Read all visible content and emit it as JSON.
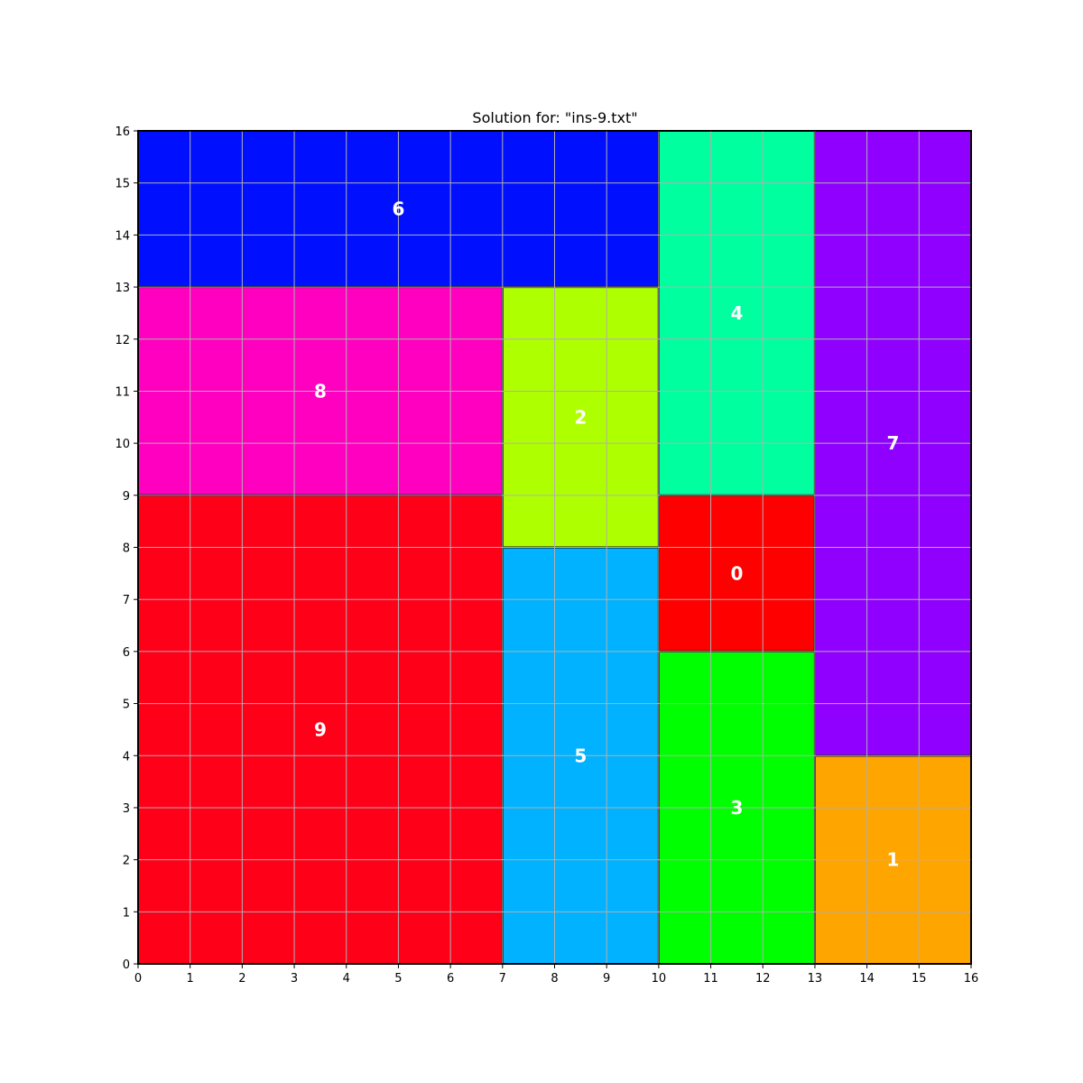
{
  "chart_data": {
    "type": "rectangle-packing",
    "title": "Solution for: \"ins-9.txt\"",
    "xlim": [
      0,
      16
    ],
    "ylim": [
      0,
      16
    ],
    "x_ticks": [
      "0",
      "1",
      "2",
      "3",
      "4",
      "5",
      "6",
      "7",
      "8",
      "9",
      "10",
      "11",
      "12",
      "13",
      "14",
      "15",
      "16"
    ],
    "y_ticks": [
      "0",
      "1",
      "2",
      "3",
      "4",
      "5",
      "6",
      "7",
      "8",
      "9",
      "10",
      "11",
      "12",
      "13",
      "14",
      "15",
      "16"
    ],
    "grid": true,
    "rectangles": [
      {
        "id": "0",
        "x": 10,
        "y": 6,
        "w": 3,
        "h": 3,
        "color": "#ff0000"
      },
      {
        "id": "1",
        "x": 13,
        "y": 0,
        "w": 3,
        "h": 4,
        "color": "#ffa500"
      },
      {
        "id": "2",
        "x": 7,
        "y": 8,
        "w": 3,
        "h": 5,
        "color": "#aeff00"
      },
      {
        "id": "3",
        "x": 10,
        "y": 0,
        "w": 3,
        "h": 6,
        "color": "#00ff00"
      },
      {
        "id": "4",
        "x": 10,
        "y": 9,
        "w": 3,
        "h": 7,
        "color": "#00ff9f"
      },
      {
        "id": "5",
        "x": 7,
        "y": 0,
        "w": 3,
        "h": 8,
        "color": "#00b2ff"
      },
      {
        "id": "6",
        "x": 0,
        "y": 13,
        "w": 10,
        "h": 3,
        "color": "#0010ff"
      },
      {
        "id": "7",
        "x": 13,
        "y": 4,
        "w": 3,
        "h": 12,
        "color": "#9000ff"
      },
      {
        "id": "8",
        "x": 0,
        "y": 9,
        "w": 7,
        "h": 4,
        "color": "#ff00c0"
      },
      {
        "id": "9",
        "x": 0,
        "y": 0,
        "w": 7,
        "h": 9,
        "color": "#ff0019"
      }
    ]
  }
}
